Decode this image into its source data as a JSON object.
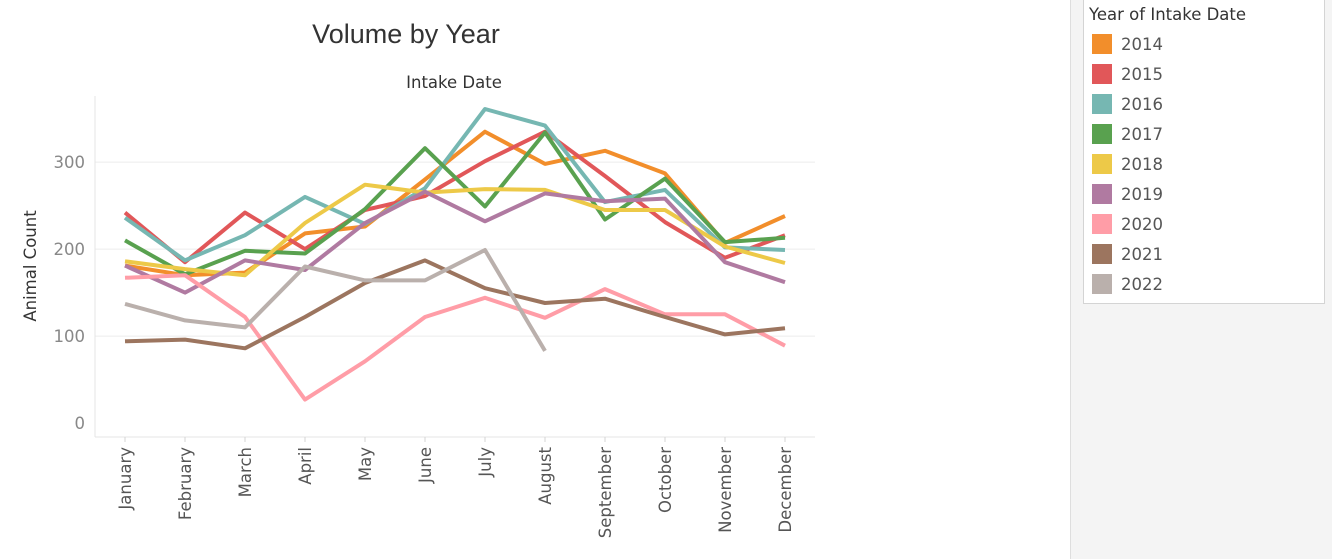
{
  "chart_data": {
    "type": "line",
    "title": "Volume by Year",
    "subtitle": "Intake Date",
    "xlabel": "",
    "ylabel": "Animal Count",
    "categories": [
      "January",
      "February",
      "March",
      "April",
      "May",
      "June",
      "July",
      "August",
      "September",
      "October",
      "November",
      "December"
    ],
    "y_ticks": [
      0,
      100,
      200,
      300
    ],
    "ylim": [
      -16,
      376
    ],
    "grid": true,
    "legend_title": "Year of Intake Date",
    "legend_position": "right",
    "series": [
      {
        "name": "2014",
        "color": "#f28e2b",
        "values": [
          181,
          170,
          173,
          218,
          226,
          280,
          335,
          298,
          313,
          287,
          207,
          238
        ]
      },
      {
        "name": "2015",
        "color": "#e15759",
        "values": [
          242,
          185,
          242,
          200,
          245,
          261,
          301,
          335,
          284,
          231,
          190,
          216
        ]
      },
      {
        "name": "2016",
        "color": "#76b7b2",
        "values": [
          236,
          187,
          216,
          260,
          229,
          270,
          361,
          342,
          254,
          268,
          202,
          199
        ]
      },
      {
        "name": "2017",
        "color": "#59a14f",
        "values": [
          210,
          171,
          198,
          195,
          246,
          316,
          249,
          334,
          234,
          281,
          208,
          213
        ]
      },
      {
        "name": "2018",
        "color": "#edc948",
        "values": [
          186,
          177,
          170,
          230,
          274,
          265,
          269,
          268,
          245,
          245,
          203,
          184
        ]
      },
      {
        "name": "2019",
        "color": "#b07aa1",
        "values": [
          181,
          150,
          187,
          176,
          230,
          266,
          232,
          264,
          255,
          258,
          185,
          162
        ]
      },
      {
        "name": "2020",
        "color": "#ff9da7",
        "values": [
          167,
          170,
          122,
          27,
          71,
          122,
          144,
          121,
          154,
          125,
          125,
          89
        ]
      },
      {
        "name": "2021",
        "color": "#9c755f",
        "values": [
          94,
          96,
          86,
          122,
          161,
          187,
          155,
          138,
          143,
          122,
          102,
          109
        ]
      },
      {
        "name": "2022",
        "color": "#bab0ac",
        "values": [
          137,
          118,
          110,
          180,
          164,
          164,
          199,
          83,
          null,
          null,
          null,
          null
        ]
      }
    ]
  }
}
